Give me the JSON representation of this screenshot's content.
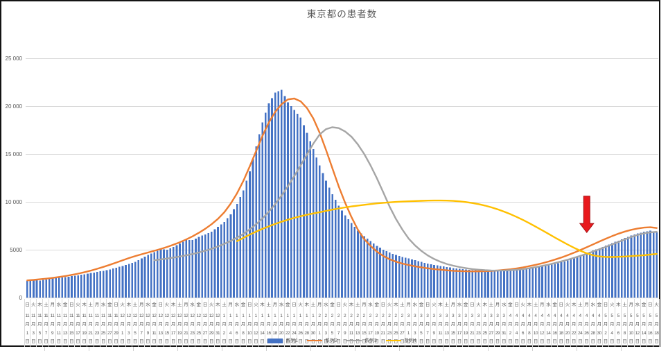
{
  "window": {
    "background": "#ffffff",
    "chart_border_color": "#141414"
  },
  "chart_data": {
    "type": "bar",
    "subtype": "combo-bar-line",
    "title": "東京都の患者数",
    "ylim": [
      0,
      25000
    ],
    "y_ticks": [
      {
        "label": "0",
        "value": 0
      },
      {
        "label": "5000",
        "value": 5000
      },
      {
        "label": "10 000",
        "value": 10000
      },
      {
        "label": "15 000",
        "value": 15000
      },
      {
        "label": "20 000",
        "value": 20000
      },
      {
        "label": "25 000",
        "value": 25000
      }
    ],
    "gridline_color": "#d9d9d9",
    "axis_label_color": "#595959",
    "legend_position": "bottom-center-overlapping-axis-labels",
    "x_axis_note": "labels every 2 days; bars are daily (midpoints interpolated)",
    "month_suffix": "月",
    "day_suffix": "日",
    "categories": [
      [
        "11",
        "1",
        "日"
      ],
      [
        "11",
        "3",
        "火"
      ],
      [
        "11",
        "5",
        "木"
      ],
      [
        "11",
        "7",
        "土"
      ],
      [
        "11",
        "9",
        "月"
      ],
      [
        "11",
        "11",
        "水"
      ],
      [
        "11",
        "13",
        "金"
      ],
      [
        "11",
        "15",
        "日"
      ],
      [
        "11",
        "17",
        "火"
      ],
      [
        "11",
        "19",
        "木"
      ],
      [
        "11",
        "21",
        "土"
      ],
      [
        "11",
        "23",
        "月"
      ],
      [
        "11",
        "25",
        "水"
      ],
      [
        "11",
        "27",
        "金"
      ],
      [
        "11",
        "29",
        "日"
      ],
      [
        "12",
        "1",
        "火"
      ],
      [
        "12",
        "3",
        "木"
      ],
      [
        "12",
        "5",
        "土"
      ],
      [
        "12",
        "7",
        "月"
      ],
      [
        "12",
        "9",
        "水"
      ],
      [
        "12",
        "11",
        "金"
      ],
      [
        "12",
        "13",
        "日"
      ],
      [
        "12",
        "15",
        "火"
      ],
      [
        "12",
        "17",
        "木"
      ],
      [
        "12",
        "19",
        "土"
      ],
      [
        "12",
        "21",
        "月"
      ],
      [
        "12",
        "23",
        "水"
      ],
      [
        "12",
        "25",
        "金"
      ],
      [
        "12",
        "27",
        "日"
      ],
      [
        "12",
        "29",
        "火"
      ],
      [
        "12",
        "31",
        "木"
      ],
      [
        "1",
        "2",
        "土"
      ],
      [
        "1",
        "4",
        "月"
      ],
      [
        "1",
        "6",
        "水"
      ],
      [
        "1",
        "8",
        "金"
      ],
      [
        "1",
        "10",
        "日"
      ],
      [
        "1",
        "12",
        "火"
      ],
      [
        "1",
        "14",
        "木"
      ],
      [
        "1",
        "16",
        "土"
      ],
      [
        "1",
        "18",
        "月"
      ],
      [
        "1",
        "20",
        "水"
      ],
      [
        "1",
        "22",
        "金"
      ],
      [
        "1",
        "24",
        "日"
      ],
      [
        "1",
        "26",
        "火"
      ],
      [
        "1",
        "28",
        "木"
      ],
      [
        "1",
        "30",
        "土"
      ],
      [
        "2",
        "1",
        "月"
      ],
      [
        "2",
        "3",
        "水"
      ],
      [
        "2",
        "5",
        "金"
      ],
      [
        "2",
        "7",
        "日"
      ],
      [
        "2",
        "9",
        "火"
      ],
      [
        "2",
        "11",
        "木"
      ],
      [
        "2",
        "13",
        "土"
      ],
      [
        "2",
        "15",
        "月"
      ],
      [
        "2",
        "17",
        "水"
      ],
      [
        "2",
        "19",
        "金"
      ],
      [
        "2",
        "21",
        "日"
      ],
      [
        "2",
        "23",
        "火"
      ],
      [
        "2",
        "25",
        "木"
      ],
      [
        "2",
        "27",
        "土"
      ],
      [
        "3",
        "1",
        "月"
      ],
      [
        "3",
        "3",
        "水"
      ],
      [
        "3",
        "5",
        "金"
      ],
      [
        "3",
        "7",
        "日"
      ],
      [
        "3",
        "9",
        "火"
      ],
      [
        "3",
        "11",
        "木"
      ],
      [
        "3",
        "13",
        "土"
      ],
      [
        "3",
        "15",
        "月"
      ],
      [
        "3",
        "17",
        "水"
      ],
      [
        "3",
        "19",
        "金"
      ],
      [
        "3",
        "21",
        "日"
      ],
      [
        "3",
        "23",
        "火"
      ],
      [
        "3",
        "25",
        "木"
      ],
      [
        "3",
        "27",
        "土"
      ],
      [
        "3",
        "29",
        "月"
      ],
      [
        "3",
        "31",
        "水"
      ],
      [
        "4",
        "2",
        "金"
      ],
      [
        "4",
        "4",
        "日"
      ],
      [
        "4",
        "6",
        "火"
      ],
      [
        "4",
        "8",
        "木"
      ],
      [
        "4",
        "10",
        "土"
      ],
      [
        "4",
        "12",
        "月"
      ],
      [
        "4",
        "14",
        "水"
      ],
      [
        "4",
        "16",
        "金"
      ],
      [
        "4",
        "18",
        "日"
      ],
      [
        "4",
        "20",
        "火"
      ],
      [
        "4",
        "22",
        "木"
      ],
      [
        "4",
        "24",
        "土"
      ],
      [
        "4",
        "26",
        "月"
      ],
      [
        "4",
        "28",
        "水"
      ],
      [
        "4",
        "30",
        "金"
      ],
      [
        "5",
        "2",
        "日"
      ],
      [
        "5",
        "4",
        "火"
      ],
      [
        "5",
        "6",
        "木"
      ],
      [
        "5",
        "8",
        "土"
      ],
      [
        "5",
        "10",
        "月"
      ],
      [
        "5",
        "12",
        "水"
      ],
      [
        "5",
        "14",
        "金"
      ],
      [
        "5",
        "16",
        "日"
      ],
      [
        "5",
        "18",
        "火"
      ]
    ],
    "series": [
      {
        "name": "系列1",
        "type": "bar",
        "color": "#4472c4",
        "values": [
          1750,
          1820,
          1780,
          1900,
          1990,
          2060,
          2140,
          2230,
          2330,
          2440,
          2560,
          2680,
          2800,
          2950,
          3120,
          3300,
          3500,
          3750,
          4100,
          4450,
          4750,
          5050,
          5000,
          5300,
          5650,
          6050,
          6000,
          6350,
          6600,
          6900,
          7400,
          7900,
          8700,
          9800,
          11200,
          13200,
          15800,
          18300,
          20300,
          21400,
          21700,
          20400,
          19600,
          18800,
          17200,
          15500,
          13800,
          12200,
          10800,
          9600,
          8600,
          7800,
          7000,
          6400,
          5900,
          5400,
          5000,
          4700,
          4450,
          4250,
          4100,
          3900,
          3720,
          3560,
          3420,
          3300,
          3190,
          3090,
          3000,
          2930,
          2870,
          2820,
          2790,
          2770,
          2790,
          2830,
          2870,
          2920,
          2980,
          3060,
          3150,
          3250,
          3370,
          3510,
          3680,
          3880,
          4110,
          4360,
          4630,
          4910,
          5160,
          5420,
          5690,
          5960,
          6230,
          6480,
          6700,
          6870,
          6980,
          6820
        ]
      },
      {
        "name": "系列2",
        "type": "line",
        "color": "#ed7d31",
        "values": [
          1800,
          1850,
          1910,
          1980,
          2060,
          2150,
          2250,
          2370,
          2500,
          2650,
          2820,
          3010,
          3210,
          3430,
          3660,
          3900,
          4130,
          4340,
          4530,
          4710,
          4890,
          5080,
          5290,
          5520,
          5780,
          6070,
          6400,
          6770,
          7190,
          7670,
          8230,
          8910,
          9810,
          10900,
          12200,
          13700,
          15300,
          16900,
          18300,
          19400,
          20200,
          20700,
          20800,
          20500,
          19800,
          18700,
          17200,
          15400,
          13500,
          11600,
          9900,
          8400,
          7100,
          6100,
          5400,
          4800,
          4350,
          4000,
          3750,
          3550,
          3400,
          3270,
          3160,
          3060,
          2980,
          2910,
          2850,
          2800,
          2770,
          2750,
          2740,
          2740,
          2760,
          2790,
          2830,
          2890,
          2960,
          3050,
          3160,
          3290,
          3430,
          3590,
          3770,
          3970,
          4190,
          4430,
          4690,
          4970,
          5260,
          5560,
          5860,
          6150,
          6430,
          6680,
          6900,
          7080,
          7220,
          7310,
          7350,
          7270
        ]
      },
      {
        "name": "系列3",
        "type": "line",
        "color": "#a5a5a5",
        "values": [
          null,
          null,
          null,
          null,
          null,
          null,
          null,
          null,
          null,
          null,
          null,
          null,
          null,
          null,
          null,
          null,
          null,
          null,
          null,
          null,
          3900,
          3990,
          4080,
          4180,
          4290,
          4410,
          4550,
          4710,
          4890,
          5100,
          5340,
          5610,
          5920,
          6270,
          6670,
          7130,
          7660,
          8270,
          8970,
          9760,
          10650,
          11630,
          12690,
          13810,
          14960,
          16090,
          17050,
          17600,
          17800,
          17700,
          17350,
          16800,
          16000,
          15000,
          13800,
          12450,
          11000,
          9500,
          8200,
          7100,
          6150,
          5450,
          4870,
          4400,
          4030,
          3740,
          3510,
          3330,
          3190,
          3070,
          2980,
          2910,
          2860,
          2830,
          2820,
          2830,
          2860,
          2910,
          2980,
          3070,
          3180,
          3310,
          3450,
          3610,
          3780,
          3960,
          4150,
          4360,
          4580,
          4810,
          5050,
          5300,
          5560,
          5820,
          6080,
          6330,
          6550,
          6720,
          6820,
          6870
        ]
      },
      {
        "name": "系列4",
        "type": "line",
        "color": "#ffc000",
        "values": [
          null,
          null,
          null,
          null,
          null,
          null,
          null,
          null,
          null,
          null,
          null,
          null,
          null,
          null,
          null,
          null,
          null,
          null,
          null,
          null,
          null,
          null,
          null,
          null,
          null,
          null,
          null,
          null,
          null,
          null,
          null,
          null,
          null,
          5900,
          6250,
          6580,
          6890,
          7180,
          7450,
          7700,
          7930,
          8140,
          8330,
          8500,
          8650,
          8790,
          8920,
          9060,
          9190,
          9310,
          9420,
          9520,
          9610,
          9690,
          9770,
          9840,
          9900,
          9950,
          9990,
          10030,
          10060,
          10090,
          10110,
          10130,
          10140,
          10140,
          10130,
          10100,
          10050,
          9980,
          9880,
          9760,
          9610,
          9430,
          9220,
          8980,
          8710,
          8420,
          8100,
          7760,
          7400,
          7030,
          6650,
          6270,
          5900,
          5540,
          5200,
          4890,
          4620,
          4420,
          4300,
          4250,
          4240,
          4260,
          4290,
          4330,
          4380,
          4430,
          4490,
          4560
        ]
      }
    ],
    "annotation": {
      "shape": "down-arrow",
      "fill": "#e8191d",
      "stroke": "#a61216",
      "category_index": 88,
      "top_value": 10600,
      "tip_value": 6800
    }
  }
}
